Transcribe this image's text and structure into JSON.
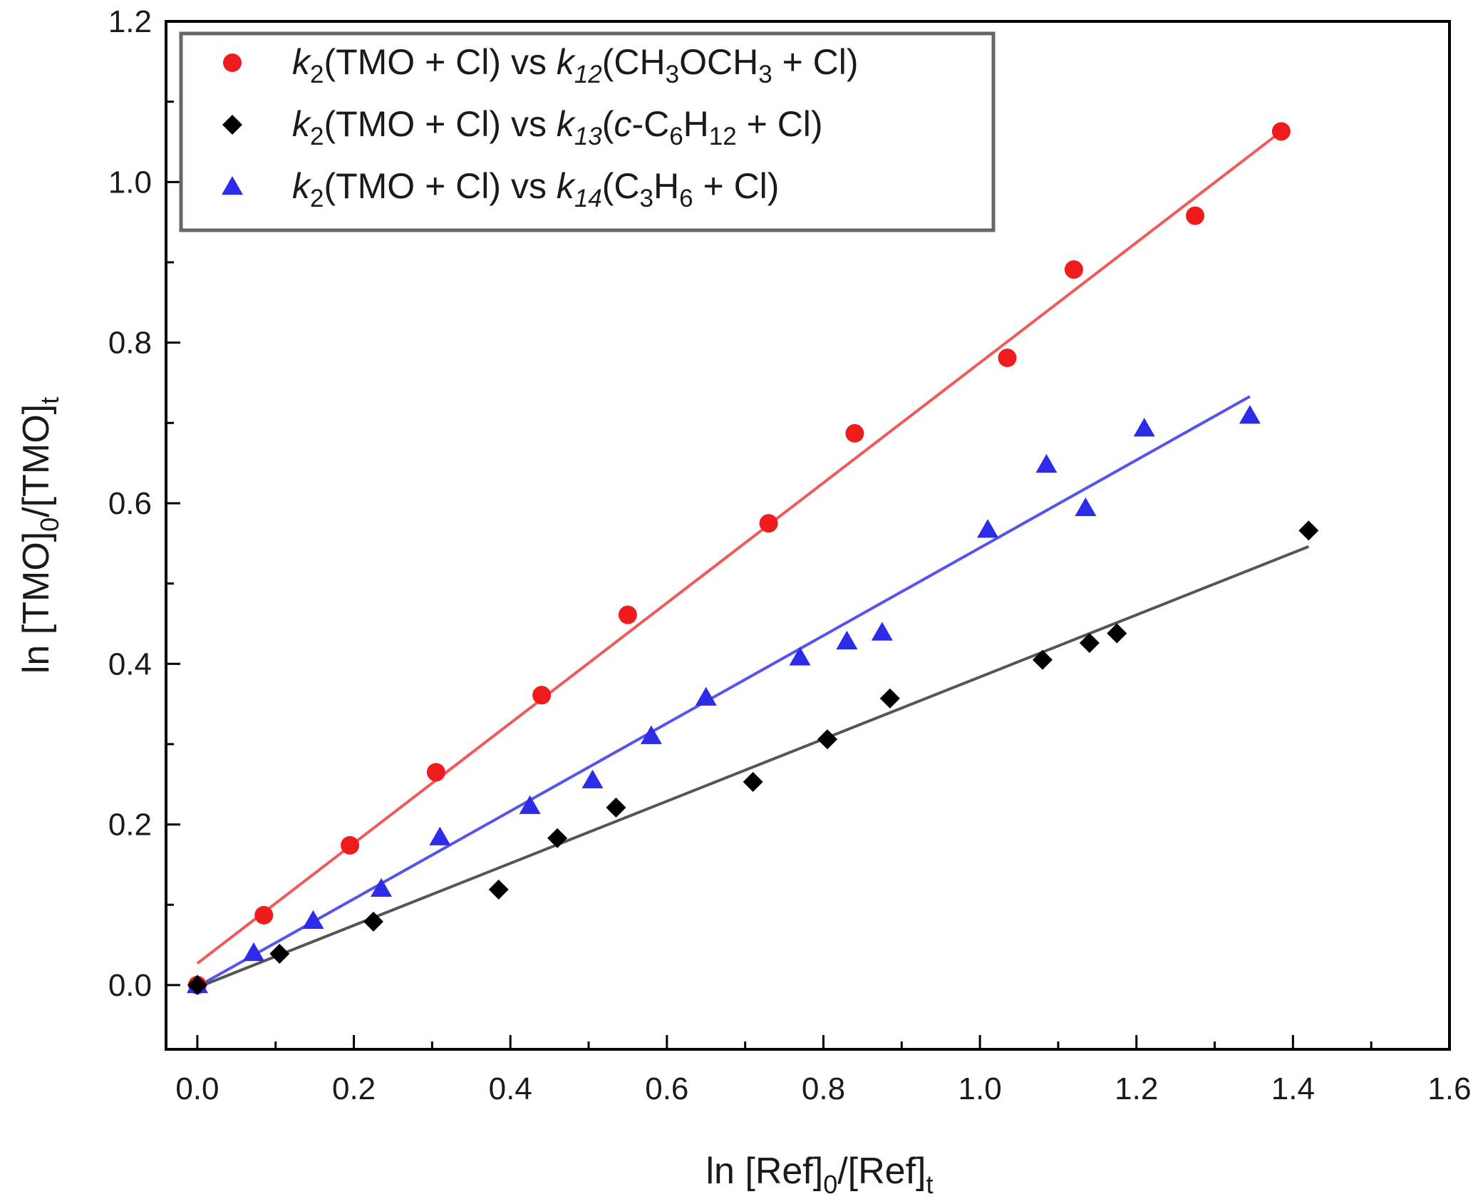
{
  "chart_data": {
    "type": "scatter",
    "title": "",
    "xlabel": "ln [Ref]0/[Ref]t",
    "xlabel_parts": {
      "main": "ln [Ref]",
      "sub1": "0",
      "mid": "/[Ref]",
      "sub2": "t"
    },
    "ylabel": "ln [TMO]0/[TMO]t",
    "ylabel_parts": {
      "main": "ln [TMO]",
      "sub1": "0",
      "mid": "/[TMO]",
      "sub2": "t"
    },
    "xlim": [
      -0.04,
      1.6
    ],
    "ylim": [
      -0.08,
      1.2
    ],
    "x_ticks": [
      "0.0",
      "0.2",
      "0.4",
      "0.6",
      "0.8",
      "1.0",
      "1.2",
      "1.4",
      "1.6"
    ],
    "y_ticks": [
      "0.0",
      "0.2",
      "0.4",
      "0.6",
      "0.8",
      "1.0",
      "1.2"
    ],
    "x_tick_values": [
      0.0,
      0.2,
      0.4,
      0.6,
      0.8,
      1.0,
      1.2,
      1.4,
      1.6
    ],
    "y_tick_values": [
      0.0,
      0.2,
      0.4,
      0.6,
      0.8,
      1.0,
      1.2
    ],
    "grid": false,
    "legend_position": "top-left",
    "series": [
      {
        "name": "k2(TMO + Cl) vs k12(CH3OCH3 + Cl)",
        "legend_parts": [
          {
            "t": "k",
            "style": "italic"
          },
          {
            "t": "2",
            "style": "sub"
          },
          {
            "t": "(TMO + Cl) vs ",
            "style": "normal"
          },
          {
            "t": "k",
            "style": "italic"
          },
          {
            "t": "12",
            "style": "sub-italic"
          },
          {
            "t": "(CH",
            "style": "normal"
          },
          {
            "t": "3",
            "style": "sub"
          },
          {
            "t": "OCH",
            "style": "normal"
          },
          {
            "t": "3",
            "style": "sub"
          },
          {
            "t": " + Cl)",
            "style": "normal"
          }
        ],
        "marker": "circle",
        "color": "#ee1c1c",
        "line_color": "#f05a5a",
        "x": [
          0.0,
          0.085,
          0.195,
          0.305,
          0.44,
          0.55,
          0.73,
          0.84,
          1.035,
          1.12,
          1.275,
          1.385
        ],
        "y": [
          0.0,
          0.087,
          0.174,
          0.265,
          0.361,
          0.461,
          0.575,
          0.687,
          0.781,
          0.891,
          0.958,
          1.063
        ],
        "fit": {
          "x": [
            0.0,
            1.385
          ],
          "y": [
            0.027,
            1.063
          ]
        }
      },
      {
        "name": "k2(TMO + Cl) vs k13(c-C6H12 + Cl)",
        "legend_parts": [
          {
            "t": "k",
            "style": "italic"
          },
          {
            "t": "2",
            "style": "sub"
          },
          {
            "t": "(TMO + Cl) vs ",
            "style": "normal"
          },
          {
            "t": "k",
            "style": "italic"
          },
          {
            "t": "13",
            "style": "sub-italic"
          },
          {
            "t": "(",
            "style": "normal"
          },
          {
            "t": "c",
            "style": "italic"
          },
          {
            "t": "-C",
            "style": "normal"
          },
          {
            "t": "6",
            "style": "sub"
          },
          {
            "t": "H",
            "style": "normal"
          },
          {
            "t": "12",
            "style": "sub"
          },
          {
            "t": " + Cl)",
            "style": "normal"
          }
        ],
        "marker": "diamond",
        "color": "#000000",
        "line_color": "#555555",
        "x": [
          0.0,
          0.105,
          0.225,
          0.385,
          0.46,
          0.535,
          0.71,
          0.805,
          0.885,
          1.08,
          1.14,
          1.175,
          1.42
        ],
        "y": [
          0.0,
          0.039,
          0.079,
          0.119,
          0.183,
          0.221,
          0.253,
          0.306,
          0.357,
          0.405,
          0.426,
          0.438,
          0.566
        ],
        "fit": {
          "x": [
            0.0,
            1.42
          ],
          "y": [
            -0.003,
            0.546
          ]
        }
      },
      {
        "name": "k2(TMO + Cl) vs k14(C3H6 + Cl)",
        "legend_parts": [
          {
            "t": "k",
            "style": "italic"
          },
          {
            "t": "2",
            "style": "sub"
          },
          {
            "t": "(TMO + Cl) vs ",
            "style": "normal"
          },
          {
            "t": "k",
            "style": "italic"
          },
          {
            "t": "14",
            "style": "sub-italic"
          },
          {
            "t": "(C",
            "style": "normal"
          },
          {
            "t": "3",
            "style": "sub"
          },
          {
            "t": "H",
            "style": "normal"
          },
          {
            "t": "6",
            "style": "sub"
          },
          {
            "t": " + Cl)",
            "style": "normal"
          }
        ],
        "marker": "triangle",
        "color": "#2b2be8",
        "line_color": "#5555ee",
        "x": [
          0.0,
          0.072,
          0.148,
          0.235,
          0.31,
          0.425,
          0.505,
          0.58,
          0.65,
          0.77,
          0.83,
          0.875,
          1.01,
          1.085,
          1.135,
          1.21,
          1.345
        ],
        "y": [
          0.0,
          0.04,
          0.08,
          0.12,
          0.184,
          0.223,
          0.255,
          0.31,
          0.358,
          0.408,
          0.428,
          0.439,
          0.567,
          0.648,
          0.594,
          0.693,
          0.709
        ],
        "fit": {
          "x": [
            0.0,
            1.345
          ],
          "y": [
            -0.002,
            0.733
          ]
        }
      }
    ]
  }
}
